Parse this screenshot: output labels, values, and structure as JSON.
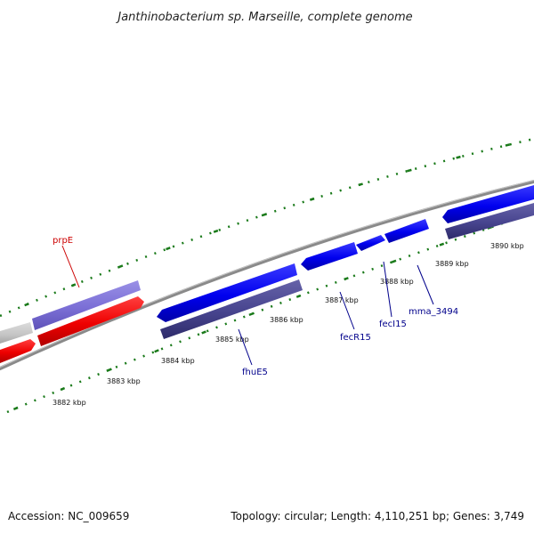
{
  "title": "Janthinobacterium sp. Marseille, complete genome",
  "footer": {
    "accession": "Accession: NC_009659",
    "summary": "Topology: circular; Length: 4,110,251 bp; Genes: 3,749"
  },
  "colors": {
    "ticks": "#1a7a1a",
    "backbone": "#8a8a8a",
    "forward_gene": "#0000ee",
    "reverse_gene": "#4a4790",
    "rna_gene": "#ee0000",
    "pale_feature": "#7b6fd6",
    "grey_feature": "#c4c4c4",
    "label_blue": "#00008b",
    "label_red": "#cc0000"
  },
  "kbp_labels": [
    "3882 kbp",
    "3883 kbp",
    "3884 kbp",
    "3885 kbp",
    "3886 kbp",
    "3887 kbp",
    "3888 kbp",
    "3889 kbp",
    "3890 kbp"
  ],
  "gene_labels": [
    {
      "text": "prpE",
      "color": "#cc0000"
    },
    {
      "text": "fhuE5",
      "color": "#00008b"
    },
    {
      "text": "fecR15",
      "color": "#00008b"
    },
    {
      "text": "fecI15",
      "color": "#00008b"
    },
    {
      "text": "mma_3494",
      "color": "#00008b"
    }
  ]
}
